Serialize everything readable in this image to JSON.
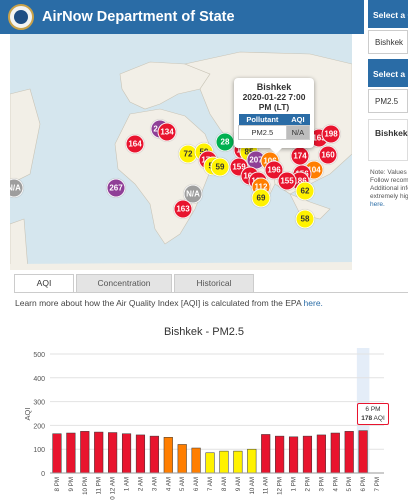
{
  "header": {
    "title": "AirNow Department of State"
  },
  "map": {
    "markers": [
      {
        "label": "N/A",
        "cat": "na",
        "x": 4,
        "y": 154
      },
      {
        "label": "267",
        "cat": "vunh",
        "x": 106,
        "y": 154
      },
      {
        "label": "164",
        "cat": "unh",
        "x": 125,
        "y": 110
      },
      {
        "label": "243",
        "cat": "vunh",
        "x": 150,
        "y": 95
      },
      {
        "label": "134",
        "cat": "unh",
        "x": 157,
        "y": 98
      },
      {
        "label": "72",
        "cat": "mod",
        "x": 178,
        "y": 120
      },
      {
        "label": "N/A",
        "cat": "na",
        "x": 183,
        "y": 160
      },
      {
        "label": "163",
        "cat": "unh",
        "x": 173,
        "y": 175
      },
      {
        "label": "59",
        "cat": "mod",
        "x": 194,
        "y": 118
      },
      {
        "label": "178",
        "cat": "unh",
        "x": 198,
        "y": 126
      },
      {
        "label": "57",
        "cat": "mod",
        "x": 203,
        "y": 132
      },
      {
        "label": "59",
        "cat": "mod",
        "x": 210,
        "y": 133
      },
      {
        "label": "28",
        "cat": "good",
        "x": 215,
        "y": 108
      },
      {
        "label": "N/A",
        "cat": "na",
        "x": 242,
        "y": 97
      },
      {
        "label": "113",
        "cat": "unh",
        "x": 233,
        "y": 102
      },
      {
        "label": "134",
        "cat": "unh",
        "x": 233,
        "y": 108
      },
      {
        "label": "160",
        "cat": "unh",
        "x": 233,
        "y": 116
      },
      {
        "label": "85",
        "cat": "mod",
        "x": 239,
        "y": 118
      },
      {
        "label": "207",
        "cat": "vunh",
        "x": 246,
        "y": 126
      },
      {
        "label": "159",
        "cat": "unh",
        "x": 229,
        "y": 133
      },
      {
        "label": "106",
        "cat": "usg",
        "x": 260,
        "y": 127
      },
      {
        "label": "164",
        "cat": "unh",
        "x": 240,
        "y": 142
      },
      {
        "label": "193",
        "cat": "unh",
        "x": 248,
        "y": 147
      },
      {
        "label": "112",
        "cat": "usg",
        "x": 251,
        "y": 153
      },
      {
        "label": "69",
        "cat": "mod",
        "x": 251,
        "y": 164
      },
      {
        "label": "196",
        "cat": "unh",
        "x": 264,
        "y": 136
      },
      {
        "label": "164",
        "cat": "unh",
        "x": 294,
        "y": 87
      },
      {
        "label": "163",
        "cat": "unh",
        "x": 309,
        "y": 104
      },
      {
        "label": "198",
        "cat": "unh",
        "x": 321,
        "y": 100
      },
      {
        "label": "160",
        "cat": "unh",
        "x": 318,
        "y": 121
      },
      {
        "label": "174",
        "cat": "unh",
        "x": 290,
        "y": 122
      },
      {
        "label": "104",
        "cat": "usg",
        "x": 304,
        "y": 136
      },
      {
        "label": "156",
        "cat": "unh",
        "x": 292,
        "y": 140
      },
      {
        "label": "186",
        "cat": "unh",
        "x": 290,
        "y": 147
      },
      {
        "label": "155",
        "cat": "unh",
        "x": 277,
        "y": 147
      },
      {
        "label": "62",
        "cat": "mod",
        "x": 295,
        "y": 157
      },
      {
        "label": "58",
        "cat": "mod",
        "x": 295,
        "y": 185
      }
    ],
    "popup": {
      "site": "Bishkek",
      "datetime": "2020-01-22 7:00 PM (LT)",
      "col_pollutant": "Pollutant",
      "col_aqi": "AQI",
      "pollutant": "PM2.5",
      "aqi": "N/A"
    }
  },
  "right_panel": {
    "select_city_header": "Select a City",
    "city_value": "Bishkek",
    "select_pollutant_header": "Select a Pollutant",
    "pollutant_value": "PM2.5",
    "card_title": "Bishkek",
    "note_lines": [
      "Note: Values are",
      "Follow recomm",
      "Additional info",
      "extremely high"
    ],
    "note_link": "here."
  },
  "tabs": [
    {
      "label": "AQI",
      "active": true
    },
    {
      "label": "Concentration",
      "active": false
    },
    {
      "label": "Historical",
      "active": false
    }
  ],
  "learn_more": {
    "text": "Learn more about how the Air Quality Index [AQI] is calculated from the EPA",
    "link": "here."
  },
  "chart_data": {
    "type": "bar",
    "title": "Bishkek - PM2.5",
    "ylabel": "AQI",
    "ylim": [
      0,
      500
    ],
    "yticks": [
      0,
      100,
      200,
      300,
      400,
      500
    ],
    "categories": [
      "8 PM",
      "9 PM",
      "10 PM",
      "11 PM",
      "Jan 22 12 AM",
      "1 AM",
      "2 AM",
      "3 AM",
      "4 AM",
      "5 AM",
      "6 AM",
      "7 AM",
      "8 AM",
      "9 AM",
      "10 AM",
      "11 AM",
      "12 PM",
      "1 PM",
      "2 PM",
      "3 PM",
      "4 PM",
      "5 PM",
      "6 PM",
      "7 PM"
    ],
    "tick_labels": [
      "8 PM",
      "9 PM",
      "10 PM",
      "11 PM",
      "2020 12 AM",
      "1 AM",
      "2 AM",
      "3 AM",
      "4 AM",
      "5 AM",
      "6 AM",
      "7 AM",
      "8 AM",
      "9 AM",
      "10 AM",
      "11 AM",
      "12 PM",
      "1 PM",
      "2 PM",
      "3 PM",
      "4 PM",
      "5 PM",
      "6 PM",
      "7 PM"
    ],
    "values": [
      165,
      168,
      175,
      172,
      170,
      165,
      160,
      155,
      150,
      120,
      105,
      85,
      92,
      92,
      100,
      162,
      155,
      152,
      155,
      160,
      168,
      175,
      178,
      null
    ],
    "highlight_index": 22,
    "tooltip": {
      "time": "6 PM",
      "value": "178",
      "unit": "AQI"
    },
    "colors": {
      "unhealthy": "#e8142e",
      "usg": "#ff7e00",
      "moderate": "#fff200",
      "good": "#00b050"
    }
  }
}
